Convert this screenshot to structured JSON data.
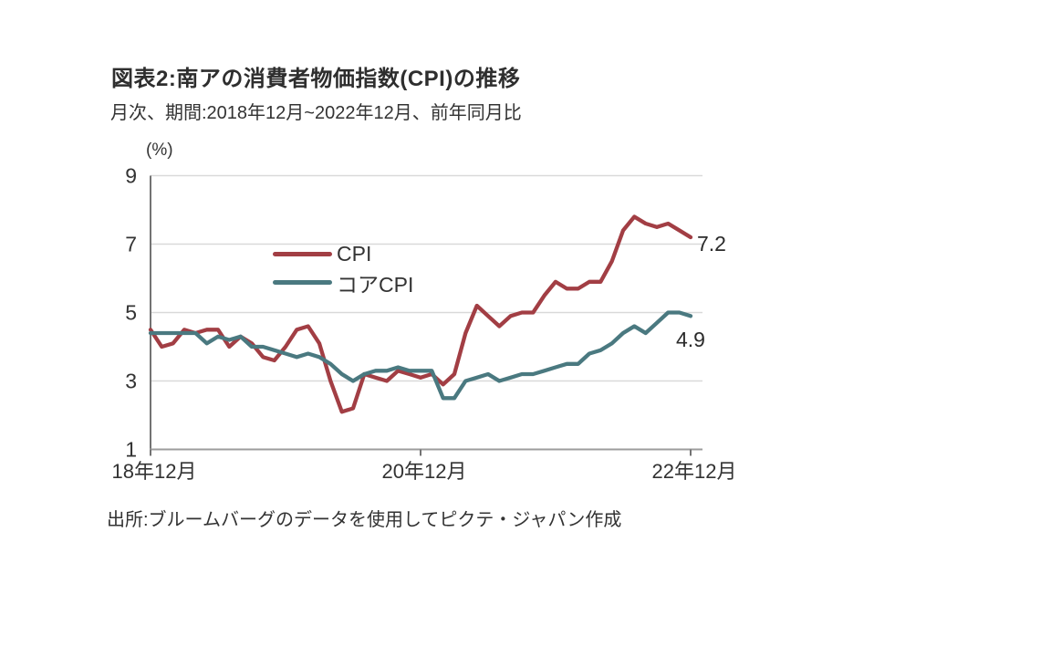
{
  "header": {
    "title": "図表2:南アの消費者物価指数(CPI)の推移",
    "subtitle": "月次、期間:2018年12月~2022年12月、前年同月比"
  },
  "footer": {
    "source": "出所:ブルームバーグのデータを使用してピクテ・ジャパン作成"
  },
  "chart_data": {
    "type": "line",
    "title": "図表2:南アの消費者物価指数(CPI)の推移",
    "subtitle": "月次、期間:2018年12月~2022年12月、前年同月比",
    "unit_label": "(%)",
    "x_axis": {
      "tick_labels": [
        "18年12月",
        "20年12月",
        "22年12月"
      ],
      "tick_month_indices": [
        0,
        24,
        48
      ],
      "n_points": 49,
      "frequency": "monthly"
    },
    "y_axis": {
      "ticks": [
        9,
        7,
        5,
        3,
        1
      ],
      "range": [
        1,
        9
      ],
      "gridline_values": [
        7,
        5,
        3
      ]
    },
    "legend": {
      "position": "inside-top-left"
    },
    "colors": {
      "gridline": "#D9D9D9",
      "y_axis_line": "#737373",
      "x_axis_line": "#9C9C9C",
      "text": "#333333"
    },
    "series": [
      {
        "name": "CPI",
        "color": "#A23E44",
        "end_label": "7.2",
        "values": [
          4.5,
          4.0,
          4.1,
          4.5,
          4.4,
          4.5,
          4.5,
          4.0,
          4.3,
          4.1,
          3.7,
          3.6,
          4.0,
          4.5,
          4.6,
          4.1,
          3.0,
          2.1,
          2.2,
          3.2,
          3.1,
          3.0,
          3.3,
          3.2,
          3.1,
          3.2,
          2.9,
          3.2,
          4.4,
          5.2,
          4.9,
          4.6,
          4.9,
          5.0,
          5.0,
          5.5,
          5.9,
          5.7,
          5.7,
          5.9,
          5.9,
          6.5,
          7.4,
          7.8,
          7.6,
          7.5,
          7.6,
          7.4,
          7.2
        ]
      },
      {
        "name": "コアCPI",
        "color": "#4A7980",
        "end_label": "4.9",
        "values": [
          4.4,
          4.4,
          4.4,
          4.4,
          4.4,
          4.1,
          4.3,
          4.2,
          4.3,
          4.0,
          4.0,
          3.9,
          3.8,
          3.7,
          3.8,
          3.7,
          3.5,
          3.2,
          3.0,
          3.2,
          3.3,
          3.3,
          3.4,
          3.3,
          3.3,
          3.3,
          2.5,
          2.5,
          3.0,
          3.1,
          3.2,
          3.0,
          3.1,
          3.2,
          3.2,
          3.3,
          3.4,
          3.5,
          3.5,
          3.8,
          3.9,
          4.1,
          4.4,
          4.6,
          4.4,
          4.7,
          5.0,
          5.0,
          4.9
        ]
      }
    ]
  }
}
